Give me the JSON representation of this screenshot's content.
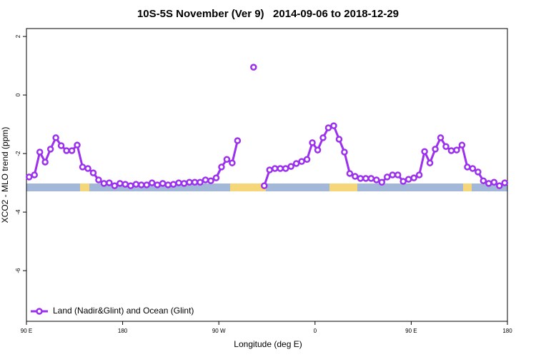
{
  "chart_data": {
    "type": "line",
    "title": "10S-5S November (Ver 9)   2014-09-06 to 2018-12-29",
    "xlabel": "Longitude (deg E)",
    "ylabel": "XCO2 - MLO trend (ppm)",
    "xlim": [
      90,
      540
    ],
    "ylim": [
      -7.73,
      2.27
    ],
    "xticks": [
      {
        "value": 90,
        "label": "90 E"
      },
      180,
      {
        "value": 270,
        "label": "90 W"
      },
      {
        "value": 360,
        "label": "0"
      },
      {
        "value": 450,
        "label": "90 E"
      },
      {
        "value": 540,
        "label": "180"
      }
    ],
    "yticks": [
      2,
      0,
      -2,
      -4,
      -6
    ],
    "grid": false,
    "legend": "bottom-left",
    "x": [
      92.5,
      97.5,
      102.5,
      107.5,
      112.5,
      117.5,
      122.5,
      127.5,
      132.5,
      137.5,
      142.5,
      147.5,
      152.5,
      157.5,
      162.5,
      167.5,
      172.5,
      177.5,
      182.5,
      187.5,
      192.5,
      197.5,
      202.5,
      207.5,
      212.5,
      217.5,
      222.5,
      227.5,
      232.5,
      237.5,
      242.5,
      247.5,
      252.5,
      257.5,
      262.5,
      267.5,
      272.5,
      277.5,
      282.5,
      287.5,
      292.5,
      297.5,
      302.5,
      307.5,
      312.5,
      317.5,
      322.5,
      327.5,
      332.5,
      337.5,
      342.5,
      347.5,
      352.5,
      357.5,
      362.5,
      367.5,
      372.5,
      377.5,
      382.5,
      387.5,
      392.5,
      397.5,
      402.5,
      407.5,
      412.5,
      417.5,
      422.5,
      427.5,
      432.5,
      437.5,
      442.5,
      447.5,
      452.5,
      457.5,
      462.5,
      467.5,
      472.5,
      477.5,
      482.5,
      487.5,
      492.5,
      497.5,
      502.5,
      507.5,
      512.5,
      517.5,
      522.5,
      527.5,
      532.5,
      537.5
    ],
    "series": [
      {
        "name": "Land (Nadir&Glint) and Ocean (Glint)",
        "color": "#9b30ee",
        "values": [
          -2.8,
          -2.73,
          -1.95,
          -2.29,
          -1.85,
          -1.46,
          -1.73,
          -1.9,
          -1.9,
          -1.71,
          -2.46,
          -2.51,
          -2.66,
          -2.9,
          -3.02,
          -3.0,
          -3.1,
          -3.02,
          -3.05,
          -3.1,
          -3.05,
          -3.07,
          -3.07,
          -3.0,
          -3.07,
          -3.02,
          -3.07,
          -3.05,
          -3.0,
          -3.02,
          -2.98,
          -2.98,
          -2.98,
          -2.9,
          -2.93,
          -2.83,
          -2.46,
          -2.2,
          -2.32,
          -1.56,
          null,
          null,
          0.95,
          null,
          -3.1,
          -2.56,
          -2.51,
          -2.51,
          -2.51,
          -2.44,
          -2.34,
          -2.27,
          -2.2,
          -1.63,
          -1.88,
          -1.46,
          -1.12,
          -1.05,
          -1.51,
          -1.95,
          -2.68,
          -2.78,
          -2.85,
          -2.85,
          -2.85,
          -2.9,
          -2.98,
          -2.8,
          -2.73,
          -2.73,
          -2.95,
          -2.88,
          -2.83,
          -2.73,
          -1.93,
          -2.32,
          -1.85,
          -1.46,
          -1.76,
          -1.9,
          -1.88,
          -1.71,
          -2.46,
          -2.51,
          -2.63,
          -2.93,
          -3.02,
          -2.98,
          -3.1,
          -3.0
        ]
      }
    ]
  }
}
